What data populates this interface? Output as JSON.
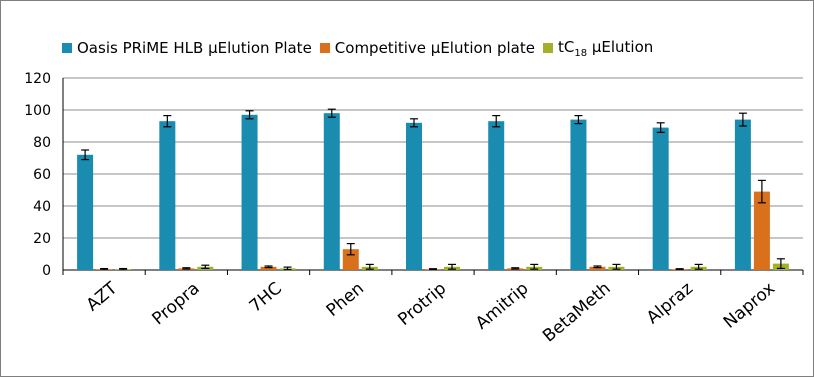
{
  "chart_data": {
    "type": "bar",
    "title": "",
    "xlabel": "",
    "ylabel": "",
    "ylim": [
      0,
      120
    ],
    "yticks": [
      0,
      20,
      40,
      60,
      80,
      100,
      120
    ],
    "grid": true,
    "legend_position": "top",
    "categories": [
      "AZT",
      "Propra",
      "7HC",
      "Phen",
      "Protrip",
      "Amitrip",
      "BetaMeth",
      "Alpraz",
      "Naprox"
    ],
    "series": [
      {
        "name": "Oasis PRiME HLB µElution Plate",
        "legend_main": "Oasis PRiME HLB µElution Plate",
        "color": "#1a8cb0",
        "values": [
          72,
          93,
          97,
          98,
          92,
          93,
          94,
          89,
          94
        ],
        "errors": [
          3,
          3.5,
          2.5,
          2.5,
          2.5,
          3.5,
          2.5,
          3,
          4
        ]
      },
      {
        "name": "Competitive µElution plate",
        "legend_main": "Competitive µElution plate",
        "color": "#d9711c",
        "values": [
          0.5,
          1,
          2,
          13,
          0.5,
          1,
          2,
          0.5,
          49
        ],
        "errors": [
          0.4,
          0.4,
          0.5,
          3.5,
          0.3,
          0.4,
          0.5,
          0.3,
          7
        ]
      },
      {
        "name": "tC18 µElution",
        "legend_main": "tC",
        "legend_sub": "18",
        "legend_tail": " µElution",
        "color": "#a3b12a",
        "values": [
          0.5,
          2,
          1,
          2,
          2,
          2,
          2,
          2,
          4
        ],
        "errors": [
          0.4,
          1,
          0.8,
          1.5,
          1.5,
          1.5,
          1.5,
          1.5,
          3
        ]
      }
    ]
  }
}
